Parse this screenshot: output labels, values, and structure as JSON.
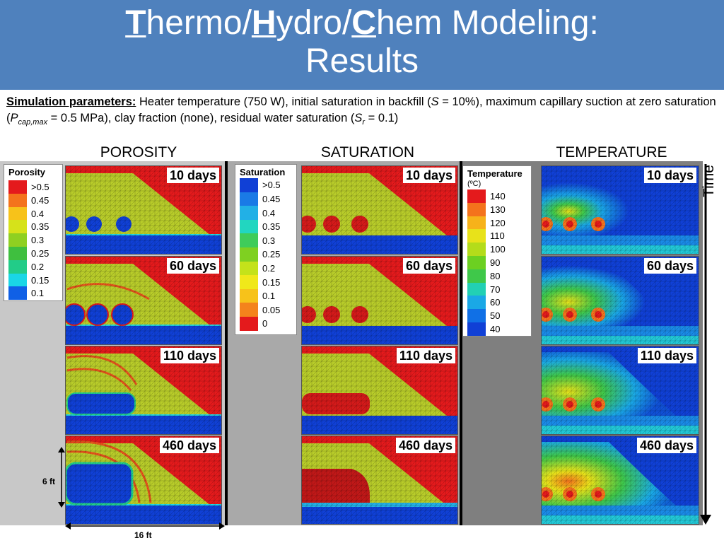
{
  "header": {
    "title_t": "T",
    "title_p1": "hermo/",
    "title_h": "H",
    "title_p2": "ydro/",
    "title_c": "C",
    "title_p3": "hem Modeling:",
    "title_line2": "Results"
  },
  "params": {
    "label": "Simulation parameters:",
    "t1": " Heater temperature (750 W), initial saturation in backfill  (",
    "s_sym": "S",
    "t2": " = 10%), maximum capillary suction at zero saturation (",
    "p_sym": "P",
    "p_sub": "cap,max",
    "t3": " = 0.5 MPa), clay fraction (none), residual water saturation (",
    "sr_sym": "S",
    "sr_sub": "r",
    "t4": " = 0.1)"
  },
  "columns": {
    "porosity": "POROSITY",
    "saturation": "SATURATION",
    "temperature": "TEMPERATURE"
  },
  "days": [
    "10 days",
    "60 days",
    "110 days",
    "460 days"
  ],
  "legends": {
    "porosity": {
      "title": "Porosity",
      "ticks": [
        ">0.5",
        "0.45",
        "0.4",
        "0.35",
        "0.3",
        "0.25",
        "0.2",
        "0.15",
        "0.1"
      ],
      "colors": [
        "#e41a1c",
        "#f4731c",
        "#f7c21a",
        "#d6e21a",
        "#8fd021",
        "#3fbf3f",
        "#22cc88",
        "#1ad6e6",
        "#1060e6"
      ]
    },
    "saturation": {
      "title": "Saturation",
      "ticks": [
        ">0.5",
        "0.45",
        "0.4",
        "0.35",
        "0.3",
        "0.25",
        "0.2",
        "0.15",
        "0.1",
        "0.05",
        "0"
      ],
      "colors": [
        "#1040d6",
        "#1a7ae6",
        "#22b0e6",
        "#22d6c0",
        "#3fcc5a",
        "#7fd021",
        "#c4e21a",
        "#f0e81a",
        "#f7c21a",
        "#f4831c",
        "#e41a1c"
      ]
    },
    "temperature": {
      "title": "Temperature",
      "subtitle": "(ºC)",
      "ticks": [
        "140",
        "130",
        "120",
        "110",
        "100",
        "90",
        "80",
        "70",
        "60",
        "50",
        "40"
      ],
      "colors": [
        "#e41a1c",
        "#f4731c",
        "#f7b21a",
        "#e8e21a",
        "#b4dc1a",
        "#6cd021",
        "#3fc84a",
        "#22d0b4",
        "#1aa8e6",
        "#1070e6",
        "#1040d6"
      ]
    }
  },
  "dimensions": {
    "height_label": "6 ft",
    "width_label": "16 ft"
  },
  "time_label": "Time",
  "colors": {
    "header_bg": "#4f81bd",
    "red": "#e41a1c",
    "yellowgreen": "#b8cc2a",
    "blue": "#1040d6",
    "porosity_bg": "#c8c8c8",
    "saturation_bg": "#a9a9a9",
    "temperature_bg": "#7f7f7f"
  }
}
